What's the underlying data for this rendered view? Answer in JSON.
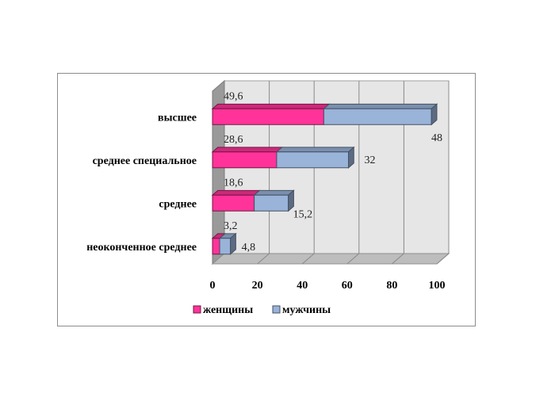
{
  "chart_data": {
    "type": "bar",
    "orientation": "horizontal",
    "stacked": true,
    "three_d": true,
    "categories": [
      "высшее",
      "среднее специальное",
      "среднее",
      "неоконченное среднее"
    ],
    "series": [
      {
        "name": "женщины",
        "values": [
          49.6,
          28.6,
          18.6,
          3.2
        ],
        "labels": [
          "49,6",
          "28,6",
          "18,6",
          "3,2"
        ],
        "color": "#ff3399"
      },
      {
        "name": "мужчины",
        "values": [
          48,
          32,
          15.2,
          4.8
        ],
        "labels": [
          "48",
          "32",
          "15,2",
          "4,8"
        ],
        "color": "#99b3d9"
      }
    ],
    "xlim": [
      0,
      100
    ],
    "xticks": [
      0,
      20,
      40,
      60,
      80,
      100
    ],
    "xtick_labels": [
      "0",
      "20",
      "40",
      "60",
      "80",
      "100"
    ],
    "grid": true,
    "legend_position": "bottom"
  }
}
